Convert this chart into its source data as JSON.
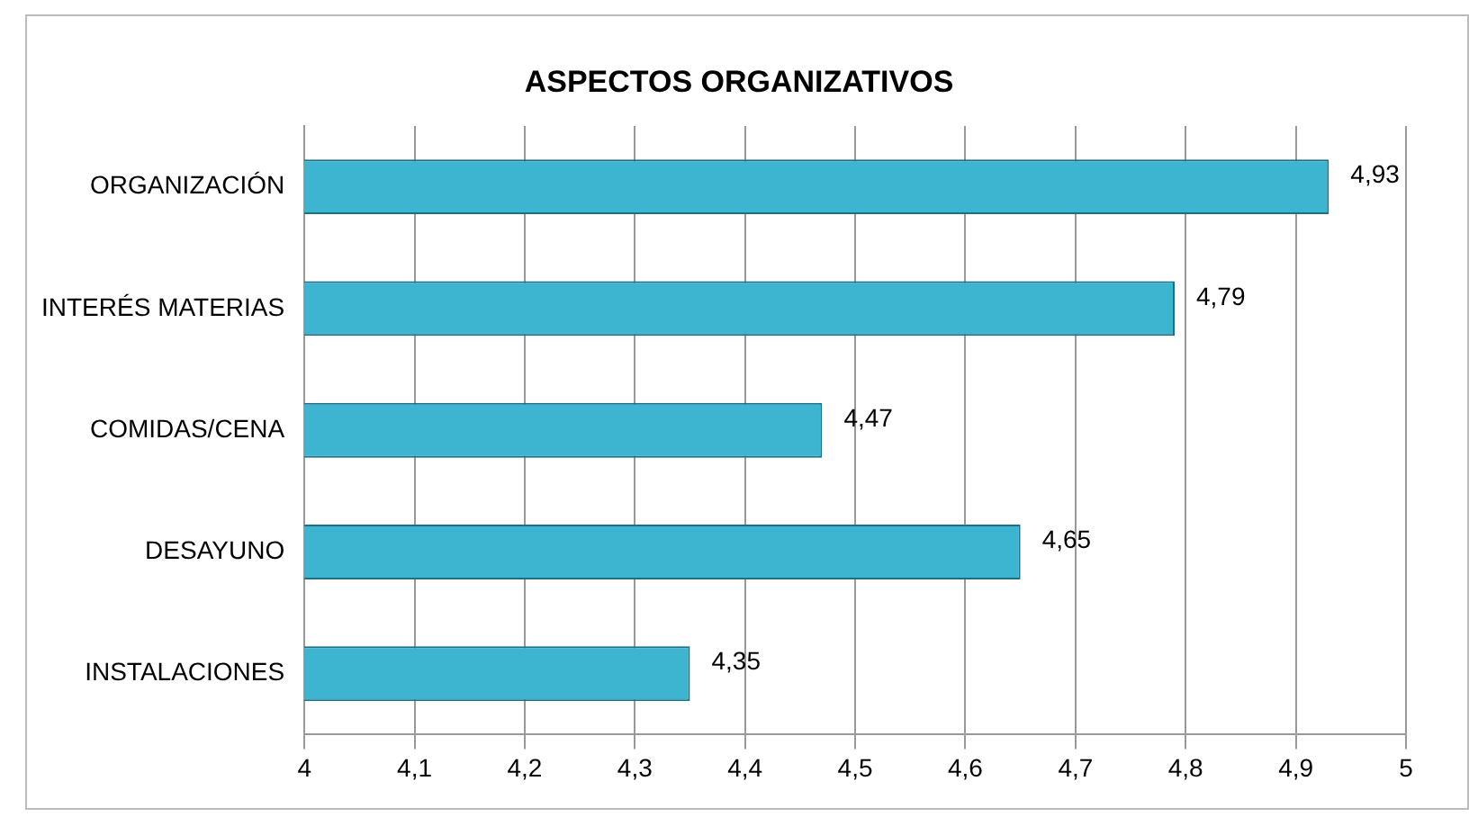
{
  "chart_data": {
    "type": "bar",
    "orientation": "horizontal",
    "title": "ASPECTOS ORGANIZATIVOS",
    "categories": [
      "ORGANIZACIÓN",
      "INTERÉS MATERIAS",
      "COMIDAS/CENA",
      "DESAYUNO",
      "INSTALACIONES"
    ],
    "values": [
      4.93,
      4.79,
      4.47,
      4.65,
      4.35
    ],
    "value_labels": [
      "4,93",
      "4,79",
      "4,47",
      "4,65",
      "4,35"
    ],
    "color": "#3db4d0",
    "xlim": [
      4,
      5
    ],
    "xticks": [
      4,
      {
        "value": 4.1,
        "label": "4,1"
      },
      {
        "value": 4.2,
        "label": "4,2"
      },
      {
        "value": 4.3,
        "label": "4,3"
      },
      {
        "value": 4.4,
        "label": "4,4"
      },
      {
        "value": 4.5,
        "label": "4,5"
      },
      {
        "value": 4.6,
        "label": "4,6"
      },
      {
        "value": 4.7,
        "label": "4,7"
      },
      {
        "value": 4.8,
        "label": "4,8"
      },
      {
        "value": 4.9,
        "label": "4,9"
      },
      5
    ],
    "grid": "x",
    "legend": false
  }
}
